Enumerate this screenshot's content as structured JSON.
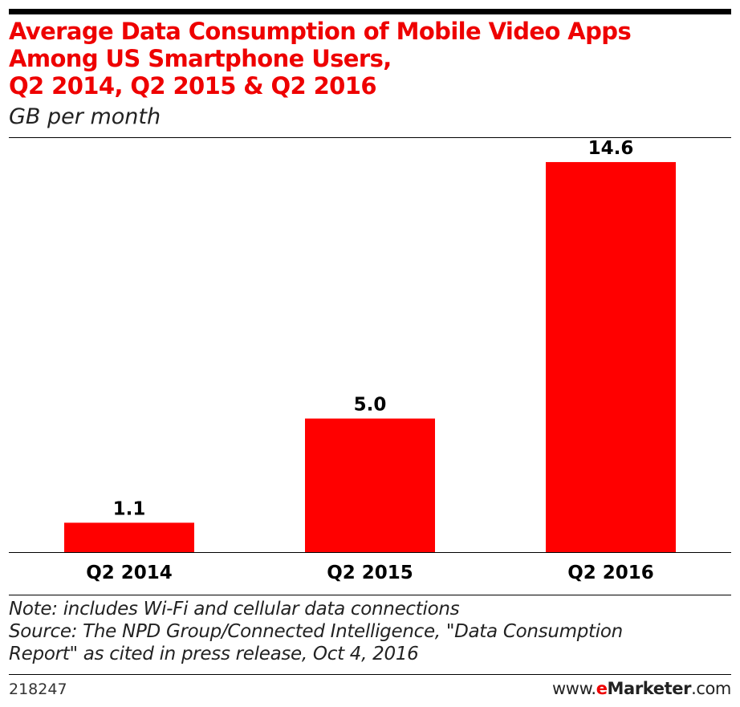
{
  "header": {
    "title": "Average Data Consumption of Mobile Video Apps\nAmong US Smartphone Users,\nQ2 2014, Q2 2015 & Q2 2016",
    "subtitle": "GB per month"
  },
  "chart_data": {
    "type": "bar",
    "title": "Average Data Consumption of Mobile Video Apps Among US Smartphone Users, Q2 2014, Q2 2015 & Q2 2016",
    "subtitle": "GB per month",
    "categories": [
      "Q2 2014",
      "Q2 2015",
      "Q2 2016"
    ],
    "values": [
      1.1,
      5.0,
      14.6
    ],
    "value_labels": [
      "1.1",
      "5.0",
      "14.6"
    ],
    "xlabel": "",
    "ylabel": "",
    "ylim": [
      0,
      15.5
    ],
    "grid": false,
    "legend": "none",
    "bar_color": "#ff0000"
  },
  "footer": {
    "note": "Note: includes Wi-Fi and cellular data connections",
    "source_line1": "Source: The NPD Group/Connected Intelligence, \"Data Consumption",
    "source_line2": "Report\" as cited in press release, Oct 4, 2016",
    "chart_id": "218247",
    "brand_prefix": "www.",
    "brand_e": "e",
    "brand_name": "Marketer",
    "brand_suffix": ".com"
  },
  "colors": {
    "title": "#ee0000",
    "bar": "#ff0000",
    "rule": "#000000"
  }
}
